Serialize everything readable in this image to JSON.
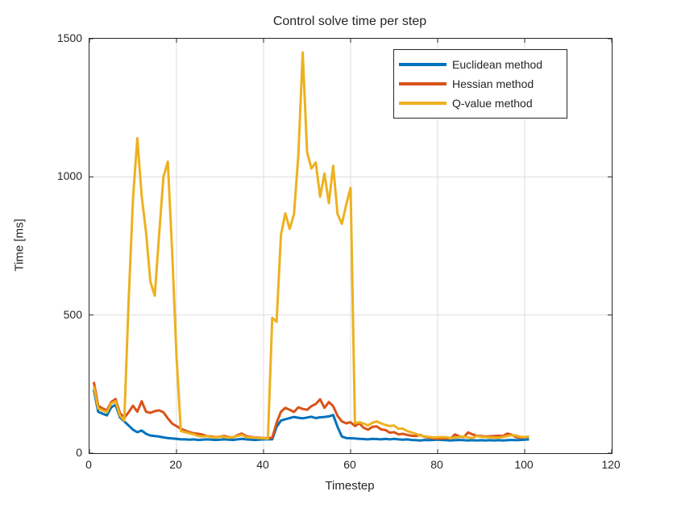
{
  "chart_data": {
    "type": "line",
    "title": "Control solve time per step",
    "xlabel": "Timestep",
    "ylabel": "Time [ms]",
    "xlim": [
      0,
      120
    ],
    "ylim": [
      0,
      1500
    ],
    "xticks": [
      0,
      20,
      40,
      60,
      80,
      100,
      120
    ],
    "yticks": [
      0,
      500,
      1000,
      1500
    ],
    "grid": true,
    "legend_position": "top-right",
    "x_start": 1,
    "series": [
      {
        "name": "Euclidean method",
        "color": "#0072BD",
        "values": [
          230,
          150,
          143,
          137,
          166,
          175,
          130,
          115,
          100,
          85,
          76,
          82,
          70,
          64,
          62,
          60,
          57,
          55,
          53,
          52,
          50,
          50,
          49,
          50,
          48,
          49,
          50,
          49,
          48,
          49,
          50,
          49,
          48,
          50,
          52,
          50,
          49,
          48,
          49,
          50,
          50,
          50,
          95,
          118,
          123,
          127,
          131,
          128,
          126,
          129,
          132,
          127,
          130,
          131,
          133,
          138,
          95,
          60,
          55,
          54,
          53,
          52,
          51,
          50,
          52,
          51,
          50,
          52,
          50,
          52,
          50,
          49,
          50,
          48,
          47,
          46,
          48,
          47,
          48,
          49,
          48,
          47,
          46,
          47,
          48,
          47,
          46,
          47,
          46,
          47,
          46,
          47,
          46,
          47,
          46,
          47,
          48,
          47,
          48,
          49,
          50
        ]
      },
      {
        "name": "Hessian method",
        "color": "#D95319",
        "values": [
          258,
          172,
          162,
          155,
          185,
          196,
          145,
          128,
          148,
          172,
          150,
          188,
          150,
          146,
          152,
          155,
          148,
          126,
          107,
          98,
          88,
          82,
          76,
          72,
          70,
          67,
          62,
          60,
          58,
          60,
          62,
          58,
          57,
          65,
          71,
          62,
          59,
          57,
          56,
          55,
          54,
          56,
          110,
          150,
          164,
          157,
          149,
          166,
          160,
          157,
          170,
          178,
          195,
          164,
          185,
          170,
          135,
          115,
          108,
          112,
          98,
          108,
          92,
          85,
          95,
          97,
          86,
          84,
          74,
          76,
          68,
          70,
          66,
          63,
          62,
          66,
          59,
          56,
          54,
          52,
          53,
          54,
          53,
          68,
          60,
          58,
          75,
          68,
          63,
          62,
          60,
          61,
          62,
          63,
          62,
          71,
          67,
          58,
          56,
          58,
          59
        ]
      },
      {
        "name": "Q-value method",
        "color": "#EDB120",
        "values": [
          242,
          162,
          155,
          148,
          180,
          188,
          136,
          118,
          550,
          920,
          1140,
          930,
          800,
          620,
          570,
          790,
          1000,
          1055,
          730,
          350,
          80,
          76,
          72,
          68,
          62,
          60,
          62,
          58,
          57,
          60,
          58,
          56,
          58,
          62,
          66,
          58,
          57,
          56,
          55,
          54,
          52,
          490,
          475,
          790,
          868,
          812,
          865,
          1080,
          1450,
          1090,
          1030,
          1052,
          928,
          1012,
          905,
          1040,
          866,
          830,
          900,
          960,
          108,
          112,
          107,
          100,
          110,
          115,
          108,
          102,
          98,
          100,
          88,
          89,
          80,
          75,
          70,
          64,
          61,
          59,
          57,
          58,
          58,
          58,
          54,
          57,
          58,
          60,
          57,
          55,
          62,
          59,
          58,
          57,
          56,
          56,
          58,
          62,
          65,
          64,
          59,
          58,
          60
        ]
      }
    ]
  }
}
